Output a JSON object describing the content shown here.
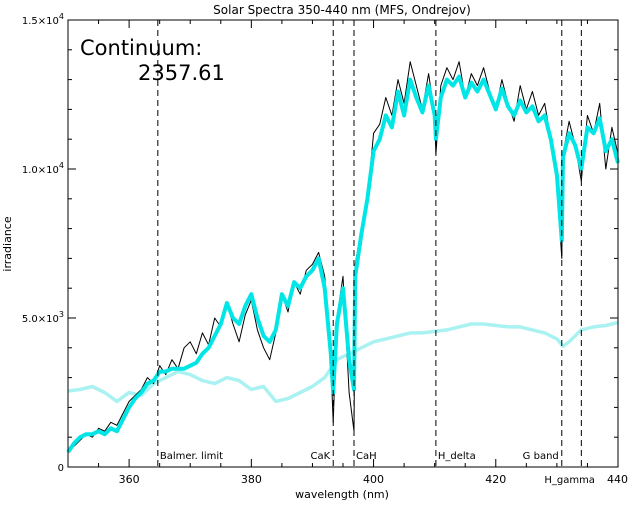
{
  "chart_data": {
    "type": "line",
    "title": "Solar Spectra 350-440 nm (MFS, Ondrejov)",
    "xlabel": "wavelength (nm)",
    "ylabel": "irradiance",
    "xlim": [
      350,
      440
    ],
    "ylim": [
      0,
      15000
    ],
    "x_ticks": [
      {
        "value": 360,
        "label": "360"
      },
      {
        "value": 380,
        "label": "380"
      },
      {
        "value": 400,
        "label": "400"
      },
      {
        "value": 420,
        "label": "420"
      },
      {
        "value": 440,
        "label": "440"
      }
    ],
    "y_ticks": [
      {
        "value": 0,
        "label": "0",
        "sup": ""
      },
      {
        "value": 5000,
        "label": "5.0×10",
        "sup": "3"
      },
      {
        "value": 10000,
        "label": "1.0×10",
        "sup": "4"
      },
      {
        "value": 15000,
        "label": "1.5×10",
        "sup": "4"
      }
    ],
    "annotation": {
      "label": "Continuum:",
      "value": "2357.61"
    },
    "lines": [
      {
        "x": 364.7,
        "label": "Balmer. limit"
      },
      {
        "x": 393.4,
        "label": "CaK"
      },
      {
        "x": 396.8,
        "label": "CaH"
      },
      {
        "x": 410.2,
        "label": "H_delta"
      },
      {
        "x": 430.8,
        "label": "G band"
      },
      {
        "x": 434.0,
        "label": "H_gamma"
      }
    ],
    "series": [
      {
        "color": "#000000",
        "x": [
          350,
          351,
          352,
          353,
          354,
          355,
          356,
          357,
          358,
          359,
          360,
          361,
          362,
          363,
          364,
          365,
          366,
          367,
          368,
          369,
          370,
          371,
          372,
          373,
          374,
          375,
          376,
          377,
          378,
          379,
          380,
          381,
          382,
          383,
          384,
          385,
          386,
          387,
          388,
          389,
          390,
          391,
          392,
          393,
          393.4,
          394,
          395,
          396,
          396.8,
          397,
          398,
          399,
          400,
          401,
          402,
          403,
          404,
          405,
          406,
          407,
          408,
          409,
          410,
          410.2,
          411,
          412,
          413,
          414,
          415,
          416,
          417,
          418,
          419,
          420,
          421,
          422,
          423,
          424,
          425,
          426,
          427,
          428,
          429,
          430,
          430.8,
          431,
          432,
          433,
          434,
          435,
          436,
          437,
          438,
          439,
          440
        ],
        "y": [
          500,
          700,
          900,
          1100,
          1000,
          1300,
          1200,
          1500,
          1400,
          1800,
          2200,
          2400,
          2600,
          3000,
          2800,
          3400,
          3100,
          3600,
          3300,
          4000,
          4200,
          3800,
          4500,
          4100,
          5000,
          4700,
          5500,
          4800,
          4200,
          5100,
          5600,
          4600,
          4000,
          3600,
          4500,
          5800,
          5200,
          6200,
          5800,
          6600,
          6800,
          7200,
          6400,
          3500,
          1500,
          5000,
          6400,
          2500,
          1200,
          6800,
          8000,
          9000,
          11200,
          11500,
          12400,
          11800,
          13000,
          12200,
          13600,
          12800,
          12000,
          13200,
          11800,
          10500,
          12800,
          13400,
          13000,
          13600,
          12400,
          13200,
          12800,
          13400,
          12600,
          12000,
          13000,
          12200,
          11600,
          12800,
          12000,
          12600,
          11800,
          12200,
          11000,
          9500,
          7000,
          10500,
          11600,
          10800,
          9600,
          11800,
          11200,
          12200,
          10000,
          11400,
          10500
        ]
      },
      {
        "color": "#00e5e5",
        "x": [
          350,
          351,
          352,
          353,
          354,
          355,
          356,
          357,
          358,
          359,
          360,
          361,
          362,
          363,
          364,
          365,
          366,
          367,
          368,
          369,
          370,
          371,
          372,
          373,
          374,
          375,
          376,
          377,
          378,
          379,
          380,
          381,
          382,
          383,
          384,
          385,
          386,
          387,
          388,
          389,
          390,
          391,
          392,
          393,
          393.4,
          394,
          395,
          396,
          396.8,
          397,
          398,
          399,
          400,
          401,
          402,
          403,
          404,
          405,
          406,
          407,
          408,
          409,
          410,
          410.2,
          411,
          412,
          413,
          414,
          415,
          416,
          417,
          418,
          419,
          420,
          421,
          422,
          423,
          424,
          425,
          426,
          427,
          428,
          429,
          430,
          430.8,
          431,
          432,
          433,
          434,
          435,
          436,
          437,
          438,
          439,
          440
        ],
        "y": [
          500,
          800,
          1000,
          1100,
          1100,
          1200,
          1100,
          1300,
          1200,
          1600,
          2000,
          2300,
          2500,
          2800,
          2900,
          3200,
          3200,
          3300,
          3300,
          3300,
          3400,
          3500,
          3800,
          4000,
          4400,
          4800,
          5500,
          5000,
          4800,
          5400,
          5800,
          5000,
          4400,
          4200,
          4600,
          5800,
          5400,
          6200,
          6000,
          6400,
          6600,
          7000,
          6000,
          3800,
          2500,
          4800,
          6000,
          3600,
          2600,
          6400,
          7800,
          9000,
          10600,
          11000,
          11800,
          11400,
          12600,
          11800,
          13000,
          12400,
          11900,
          12800,
          11800,
          11000,
          12400,
          13000,
          12800,
          13100,
          12400,
          12900,
          12600,
          13000,
          12500,
          12000,
          12700,
          12100,
          11800,
          12300,
          11900,
          12100,
          11600,
          11800,
          11000,
          9800,
          7600,
          10400,
          11200,
          10800,
          10000,
          11400,
          11200,
          11700,
          10600,
          11000,
          10200
        ]
      },
      {
        "color": "#aaf2f2",
        "x": [
          350,
          352,
          354,
          356,
          358,
          360,
          362,
          364,
          366,
          368,
          370,
          372,
          374,
          376,
          378,
          380,
          382,
          384,
          386,
          388,
          390,
          392,
          393,
          394,
          395,
          396,
          397,
          398,
          399,
          400,
          402,
          404,
          406,
          408,
          410,
          412,
          414,
          416,
          418,
          420,
          422,
          424,
          426,
          428,
          430,
          431,
          432,
          434,
          436,
          438,
          440
        ],
        "y": [
          2550,
          2600,
          2700,
          2500,
          2200,
          2500,
          2400,
          2800,
          3000,
          3200,
          3100,
          2900,
          2800,
          3000,
          2900,
          2600,
          2700,
          2200,
          2300,
          2500,
          2700,
          3000,
          3300,
          3600,
          3700,
          3800,
          3900,
          4000,
          4100,
          4200,
          4300,
          4400,
          4500,
          4500,
          4550,
          4600,
          4700,
          4800,
          4800,
          4750,
          4700,
          4700,
          4600,
          4500,
          4300,
          4050,
          4200,
          4600,
          4700,
          4750,
          4850
        ]
      }
    ]
  }
}
